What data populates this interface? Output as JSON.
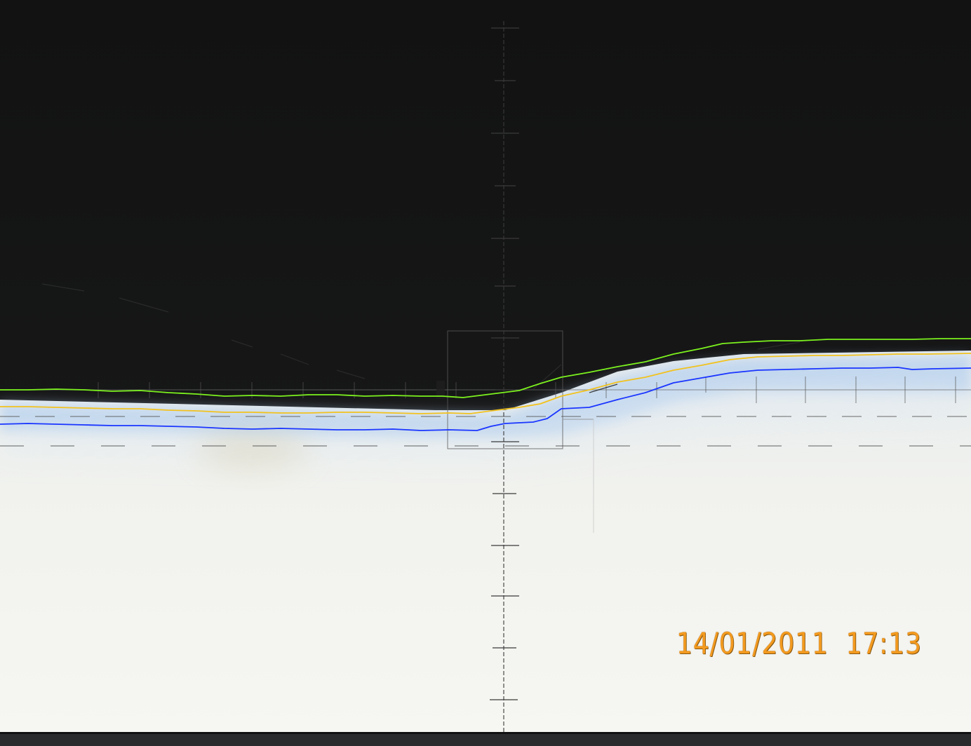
{
  "timestamp": "14/01/2011  17:13",
  "colors": {
    "upper_line": "#7cf21e",
    "middle_line": "#f2c21e",
    "lower_line": "#1a35ff",
    "timestamp": "#f39a1f"
  },
  "icons": [
    "beam-pattern-photo",
    "vertical-axis",
    "cutoff-contour-lines"
  ]
}
